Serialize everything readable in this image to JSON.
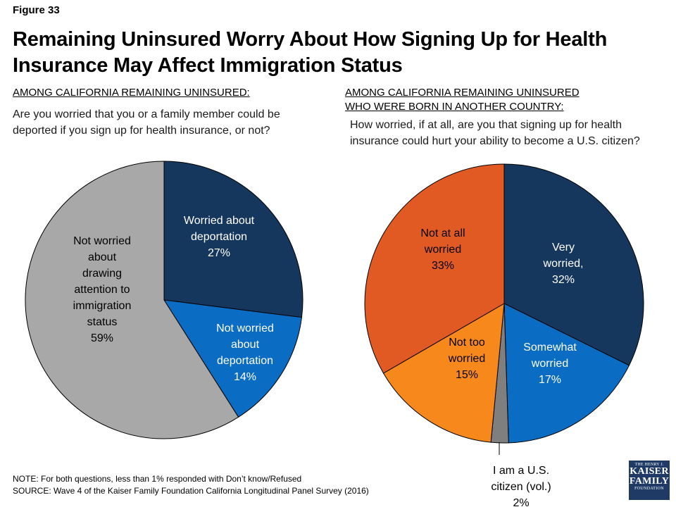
{
  "figure_label": "Figure 33",
  "title": "Remaining Uninsured Worry About How Signing Up for Health Insurance May Affect Immigration Status",
  "left_panel": {
    "subhead": "AMONG CALIFORNIA REMAINING UNINSURED:",
    "question": "Are you worried that you or a family member could be deported if you sign up for health insurance, or not?"
  },
  "right_panel": {
    "subhead_line1": "AMONG CALIFORNIA REMAINING UNINSURED",
    "subhead_line2": "WHO WERE BORN IN ANOTHER COUNTRY:",
    "question": "How worried, if at all, are you that signing up for health insurance could hurt your ability to become a U.S. citizen?"
  },
  "chart_data": [
    {
      "type": "pie",
      "slices": [
        {
          "label_lines": [
            "Worried about",
            "deportation",
            "27%"
          ],
          "value": 27,
          "color": "#15375d",
          "text_color": "#ffffff"
        },
        {
          "label_lines": [
            "Not worried",
            "about",
            "deportation",
            "14%"
          ],
          "value": 14,
          "color": "#0a6cc2",
          "text_color": "#ffffff"
        },
        {
          "label_lines": [
            "Not worried",
            "about",
            "drawing",
            "attention to",
            "immigration",
            "status",
            "59%"
          ],
          "value": 59,
          "color": "#a8a8a8",
          "text_color": "#000000"
        }
      ]
    },
    {
      "type": "pie",
      "slices": [
        {
          "label_lines": [
            "Very",
            "worried,",
            "32%"
          ],
          "value": 32,
          "color": "#15375d",
          "text_color": "#ffffff"
        },
        {
          "label_lines": [
            "Somewhat",
            "worried",
            "17%"
          ],
          "value": 17,
          "color": "#0a6cc2",
          "text_color": "#ffffff"
        },
        {
          "label_lines": [
            "I am a U.S.",
            "citizen (vol.)",
            "2%"
          ],
          "value": 2,
          "color": "#7f7f7f",
          "text_color": "#000000"
        },
        {
          "label_lines": [
            "Not too",
            "worried",
            "15%"
          ],
          "value": 15,
          "color": "#f7881c",
          "text_color": "#000000"
        },
        {
          "label_lines": [
            "Not at all",
            "worried",
            "33%"
          ],
          "value": 33,
          "color": "#e15a23",
          "text_color": "#000000"
        }
      ]
    }
  ],
  "notes": {
    "note": "NOTE: For both questions, less than 1% responded with Don’t know/Refused",
    "source": "SOURCE: Wave 4 of the Kaiser Family Foundation California Longitudinal Panel Survey (2016)"
  },
  "logo": {
    "line1": "THE HENRY J.",
    "line2": "KAISER",
    "line3": "FAMILY",
    "line4": "FOUNDATION"
  }
}
